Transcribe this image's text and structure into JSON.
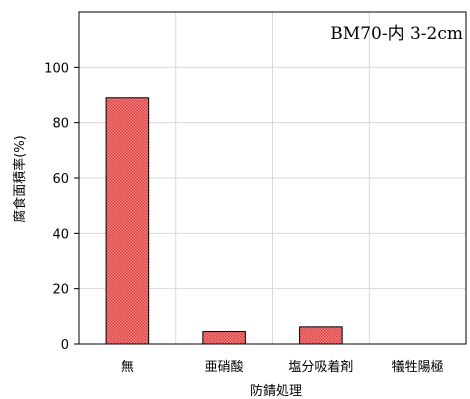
{
  "chart_data": {
    "type": "bar",
    "annotation": "BM70-内 3-2cm",
    "xlabel": "防錆処理",
    "ylabel": "腐食面積率(%)",
    "categories": [
      "無",
      "亜硝酸",
      "塩分吸着剤",
      "犠牲陽極"
    ],
    "values": [
      89,
      4.5,
      6.2,
      0
    ],
    "ylim": [
      0,
      120
    ],
    "yticks": [
      0,
      20,
      40,
      60,
      80,
      100
    ],
    "grid": true,
    "legend": "none",
    "colors": {
      "bar_fill": "#f08a8a",
      "bar_hatch": "#e23b3b",
      "bar_stroke": "#000000",
      "grid": "#d9d9d9",
      "frame": "#000000"
    }
  }
}
